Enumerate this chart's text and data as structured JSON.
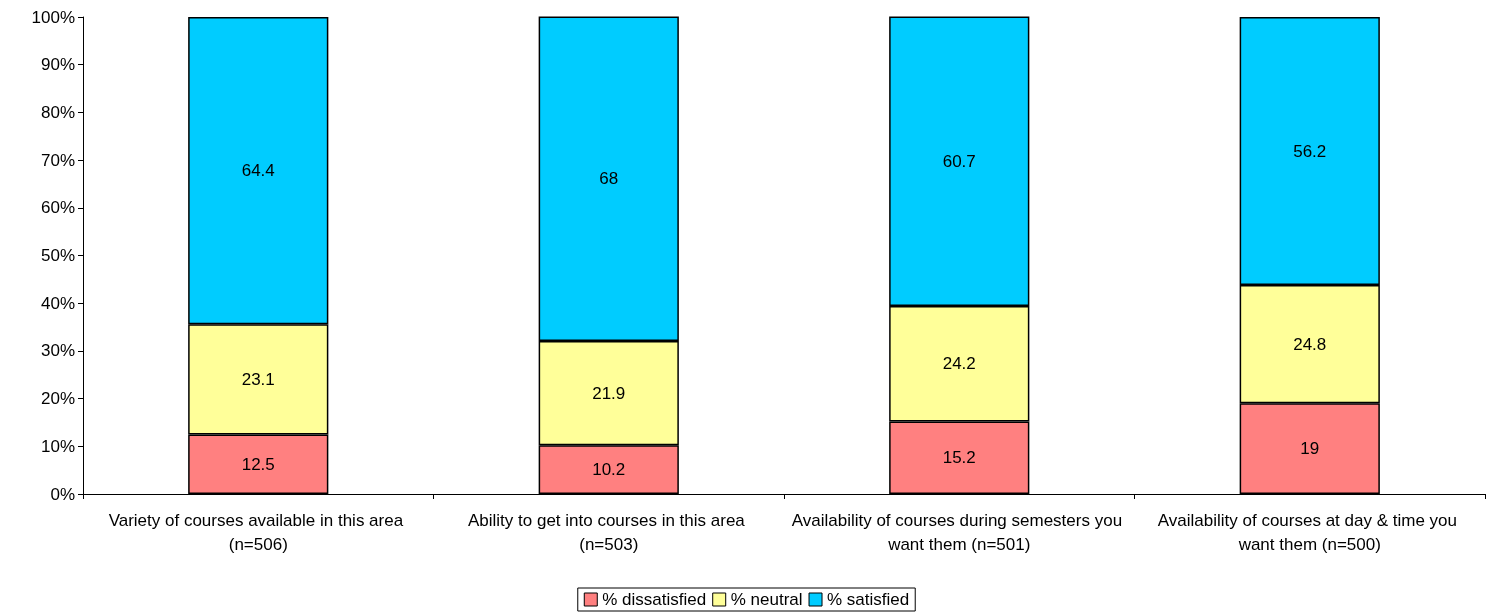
{
  "chart_data": {
    "type": "bar",
    "stacked": true,
    "categories": [
      "Variety of courses available in this area (n=506)",
      "Ability to get into courses in this area (n=503)",
      "Availability of courses during semesters you want them (n=501)",
      "Availability of courses at day & time you want them (n=500)"
    ],
    "series": [
      {
        "name": "% dissatisfied",
        "color": "#ff8080",
        "values": [
          12.5,
          10.2,
          15.2,
          19
        ]
      },
      {
        "name": "% neutral",
        "color": "#ffff99",
        "values": [
          23.1,
          21.9,
          24.2,
          24.8
        ]
      },
      {
        "name": "% satisfied",
        "color": "#00ccff",
        "values": [
          64.4,
          68,
          60.7,
          56.2
        ]
      }
    ],
    "ylim": [
      0,
      100
    ],
    "yticks": [
      {
        "value": 0,
        "label": "0%"
      },
      {
        "value": 10,
        "label": "10%"
      },
      {
        "value": 20,
        "label": "20%"
      },
      {
        "value": 30,
        "label": "30%"
      },
      {
        "value": 40,
        "label": "40%"
      },
      {
        "value": 50,
        "label": "50%"
      },
      {
        "value": 60,
        "label": "60%"
      },
      {
        "value": 70,
        "label": "70%"
      },
      {
        "value": 80,
        "label": "80%"
      },
      {
        "value": 90,
        "label": "90%"
      },
      {
        "value": 100,
        "label": "100%"
      }
    ],
    "grid": false,
    "legend": "bottom",
    "data_labels": true
  }
}
